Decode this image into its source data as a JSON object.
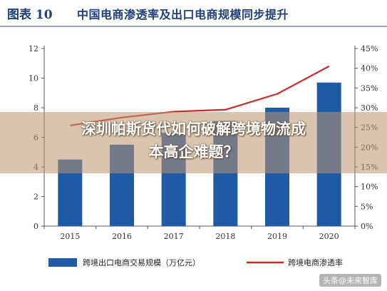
{
  "header": {
    "fig_num": "图表 10",
    "title": "中国电商渗透率及出口电商规模同步提升"
  },
  "overlay": {
    "line1": "深圳帕斯货代如何破解跨境物流成",
    "line2": "本高企难题？"
  },
  "watermark": "头条@未来智库",
  "colors": {
    "bar": "#1f5aa6",
    "line": "#cf2a2a",
    "axis": "#555555",
    "header_border": "#9aa6b6"
  },
  "chart_data": {
    "type": "bar",
    "title": "中国电商渗透率及出口电商规模同步提升",
    "categories": [
      "2015",
      "2016",
      "2017",
      "2018",
      "2019",
      "2020"
    ],
    "series": [
      {
        "name": "跨境出口电商交易规模（万亿元）",
        "type": "bar",
        "axis": "left",
        "values": [
          4.5,
          5.5,
          6.3,
          7.1,
          8.0,
          9.7
        ]
      },
      {
        "name": "跨境电商渗透率",
        "type": "line",
        "axis": "right",
        "values": [
          25.5,
          27.5,
          29.0,
          29.5,
          33.5,
          40.5
        ]
      }
    ],
    "y_left": {
      "min": 0,
      "max": 12,
      "ticks": [
        "0",
        "2",
        "4",
        "6",
        "8",
        "10",
        "12"
      ]
    },
    "y_right": {
      "min": 0,
      "max": 45,
      "ticks": [
        "0%",
        "5%",
        "10%",
        "15%",
        "20%",
        "25%",
        "30%",
        "35%",
        "40%",
        "45%"
      ]
    },
    "legend": {
      "position": "bottom",
      "bar_label": "跨境出口电商交易规模（万亿元）",
      "line_label": "跨境电商渗透率"
    },
    "grid": false
  }
}
